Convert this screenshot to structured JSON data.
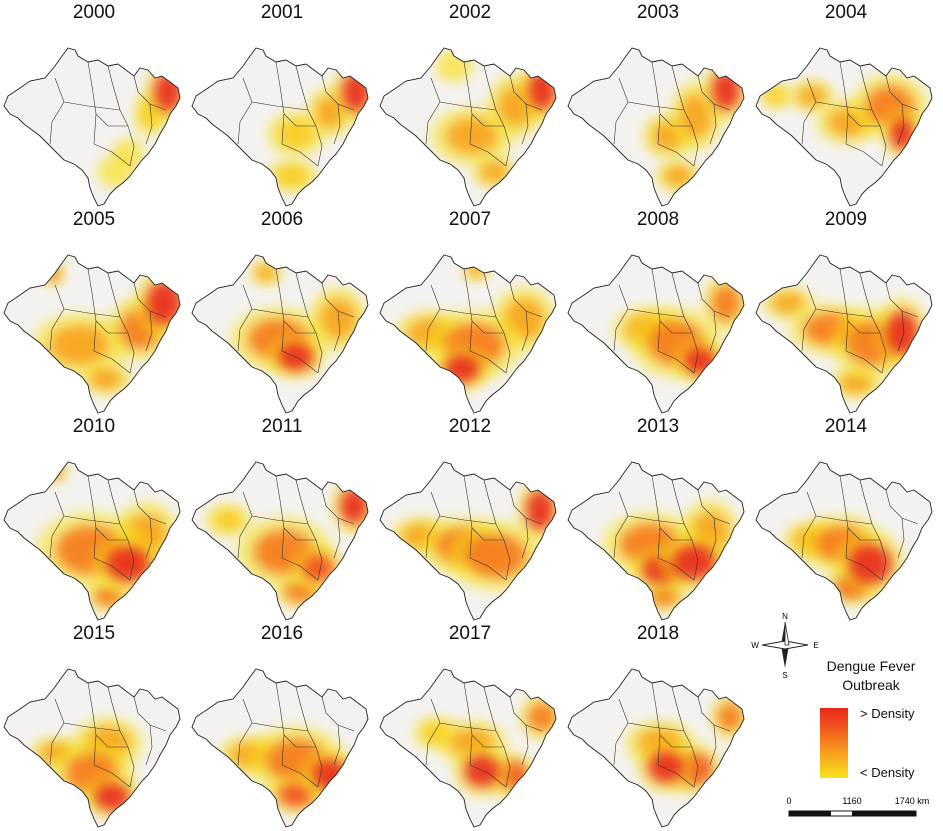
{
  "figure": {
    "years": [
      "2000",
      "2001",
      "2002",
      "2003",
      "2004",
      "2005",
      "2006",
      "2007",
      "2008",
      "2009",
      "2010",
      "2011",
      "2012",
      "2013",
      "2014",
      "2015",
      "2016",
      "2017",
      "2018"
    ]
  },
  "legend": {
    "title_line1": "Dengue Fever",
    "title_line2": "Outbreak",
    "high_label": "> Density",
    "low_label": "< Density",
    "color_high": "#e8271a",
    "color_low": "#f7e21a"
  },
  "compass": {
    "n": "N",
    "s": "S",
    "e": "E",
    "w": "W"
  },
  "scale": {
    "label_0": "0",
    "label_mid": "1160",
    "label_end": "1740 km"
  }
}
